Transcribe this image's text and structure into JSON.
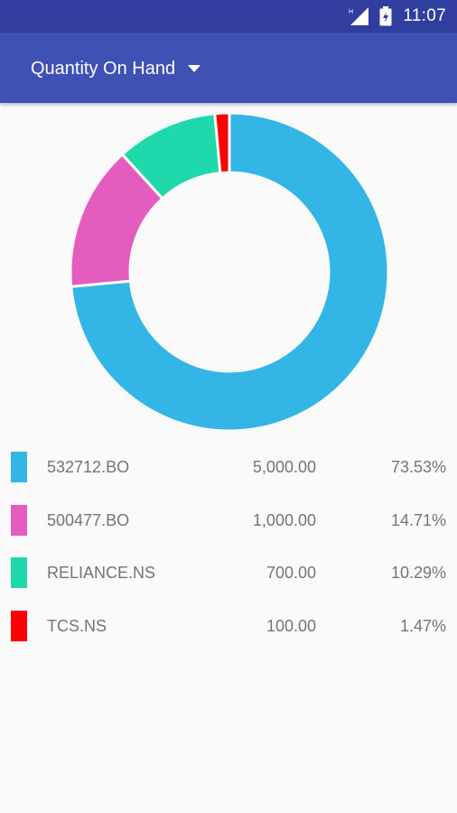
{
  "status_bar": {
    "time": "11:07",
    "signal_icon": "signal-icon",
    "battery_icon": "battery-charging-icon"
  },
  "app_bar": {
    "spinner_label": "Quantity On Hand",
    "dropdown_icon": "dropdown-arrow-icon",
    "colors": {
      "status_bar": "#303f9f",
      "app_bar": "#3f51b5"
    }
  },
  "holdings": [
    {
      "name": "532712.BO",
      "quantity": "5,000.00",
      "percent": "73.53%",
      "color": "#33b5e5"
    },
    {
      "name": "500477.BO",
      "quantity": "1,000.00",
      "percent": "14.71%",
      "color": "#e35cbe"
    },
    {
      "name": "RELIANCE.NS",
      "quantity": "700.00",
      "percent": "10.29%",
      "color": "#1fd9ad"
    },
    {
      "name": "TCS.NS",
      "quantity": "100.00",
      "percent": "1.47%",
      "color": "#ff0000"
    }
  ],
  "chart_data": {
    "type": "pie",
    "style": "donut",
    "categories": [
      "532712.BO",
      "500477.BO",
      "RELIANCE.NS",
      "TCS.NS"
    ],
    "values": [
      5000,
      1000,
      700,
      100
    ],
    "percentages": [
      73.53,
      14.71,
      10.29,
      1.47
    ],
    "colors": [
      "#33b5e5",
      "#e35cbe",
      "#1fd9ad",
      "#ff0000"
    ],
    "legend": "below"
  }
}
